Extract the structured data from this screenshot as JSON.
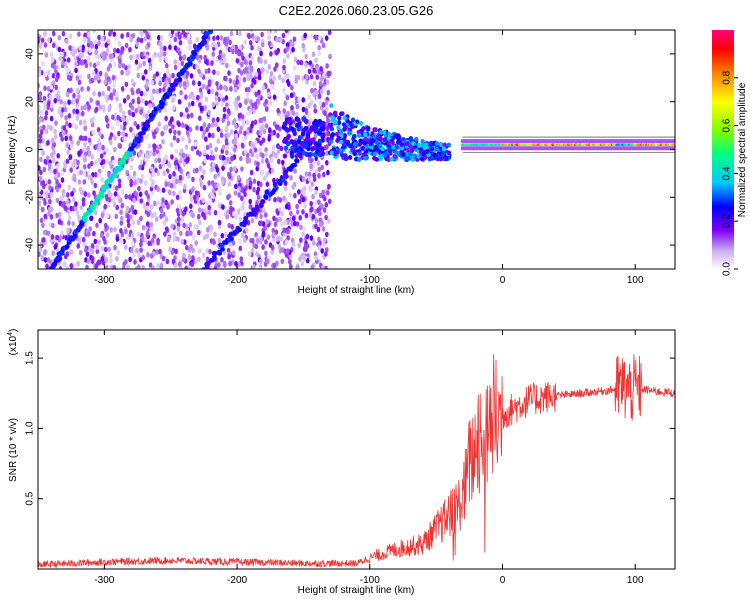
{
  "title": "C2E2.2026.060.23.05.G26",
  "chart_data": [
    {
      "type": "heatmap",
      "xlabel": "Height of straight line (km)",
      "ylabel": "Frequency (Hz)",
      "xlim": [
        -350,
        130
      ],
      "ylim": [
        -50,
        50
      ],
      "x_ticks": [
        -300,
        -200,
        -100,
        0,
        100
      ],
      "y_ticks": [
        -40,
        -20,
        0,
        20,
        40
      ],
      "colorbar": {
        "label": "Normalized spectral amplitude",
        "range": [
          0,
          1
        ],
        "ticks": [
          "0.0",
          "0.2",
          "0.4",
          "0.6",
          "0.8"
        ],
        "tick_values": [
          0.0,
          0.2,
          0.4,
          0.6,
          0.8
        ],
        "colors": [
          "#ffffff",
          "#c8a8f0",
          "#8000ff",
          "#0000ff",
          "#00c8ff",
          "#00ff80",
          "#80ff00",
          "#ffff00",
          "#ff8000",
          "#ff0000",
          "#ff0080"
        ]
      },
      "features": {
        "rising_track": {
          "start": [
            -340,
            -50
          ],
          "end": [
            -220,
            50
          ]
        },
        "second_track": {
          "start": [
            -225,
            -50
          ],
          "end": [
            -155,
            -5
          ]
        },
        "noise_region_x": [
          -350,
          -130
        ],
        "carrier_line": {
          "x_range": [
            -30,
            130
          ],
          "frequency": 2
        }
      }
    },
    {
      "type": "line",
      "xlabel": "Height of straight line (km)",
      "ylabel": "SNR (10 * v/v)",
      "exponent_label": "(x10",
      "exponent_power": "4",
      "exponent_close": ")",
      "xlim": [
        -350,
        130
      ],
      "ylim": [
        0,
        1.7
      ],
      "x_ticks": [
        -300,
        -200,
        -100,
        0,
        100
      ],
      "y_ticks": [
        0.5,
        1.0,
        1.5
      ],
      "y_tick_labels": [
        "0.5",
        "1.0",
        "1.5"
      ],
      "series": [
        {
          "color": "#ee3333",
          "x": [
            -350,
            -300,
            -250,
            -200,
            -150,
            -110,
            -100,
            -80,
            -60,
            -50,
            -40,
            -30,
            -25,
            -20,
            -15,
            -10,
            -5,
            0,
            10,
            20,
            30,
            40,
            50,
            60,
            70,
            80,
            85,
            90,
            95,
            100,
            105,
            110,
            120,
            130
          ],
          "y": [
            0.03,
            0.05,
            0.06,
            0.05,
            0.04,
            0.04,
            0.08,
            0.14,
            0.18,
            0.28,
            0.38,
            0.5,
            0.75,
            0.85,
            0.95,
            1.0,
            1.05,
            1.1,
            1.15,
            1.2,
            1.22,
            1.23,
            1.24,
            1.25,
            1.26,
            1.27,
            1.28,
            1.3,
            1.27,
            1.28,
            1.28,
            1.27,
            1.26,
            1.25
          ]
        }
      ]
    }
  ]
}
